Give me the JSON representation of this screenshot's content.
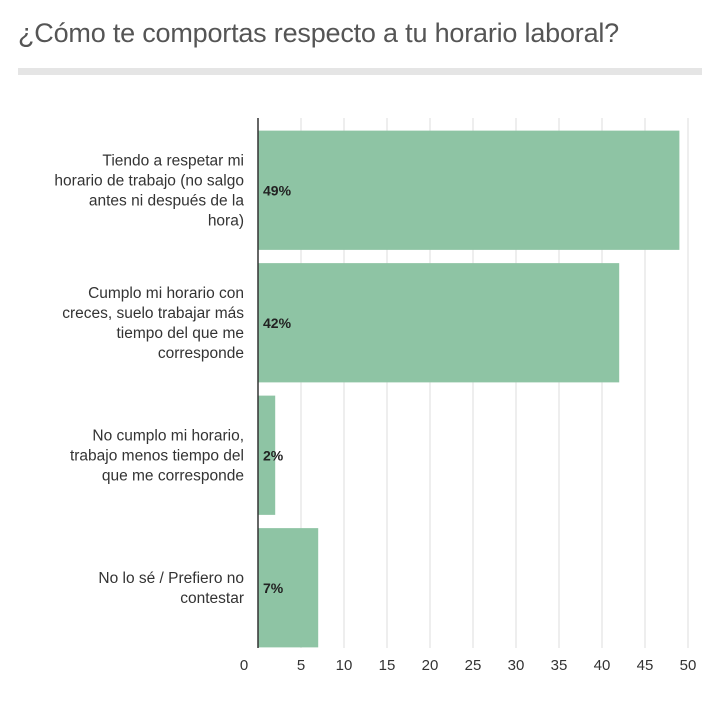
{
  "title": "¿Cómo te comportas respecto a tu horario laboral?",
  "chart_data": {
    "type": "bar",
    "orientation": "horizontal",
    "title": "¿Cómo te comportas respecto a tu horario laboral?",
    "xlabel": "",
    "ylabel": "",
    "xlim": [
      0,
      50
    ],
    "ticks": [
      0,
      5,
      10,
      15,
      20,
      25,
      30,
      35,
      40,
      45,
      50
    ],
    "grid": true,
    "bar_color": "#8ec4a4",
    "categories": [
      [
        "Tiendo a respetar mi",
        "horario de trabajo (no salgo",
        "antes ni después de la",
        "hora)"
      ],
      [
        "Cumplo mi horario con",
        "creces, suelo trabajar más",
        "tiempo del que me",
        "corresponde"
      ],
      [
        "No cumplo mi horario,",
        "trabajo menos tiempo del",
        "que me corresponde"
      ],
      [
        "No lo sé / Prefiero no",
        "contestar"
      ]
    ],
    "values": [
      49,
      42,
      2,
      7
    ],
    "data_labels": [
      "49%",
      "42%",
      "2%",
      "7%"
    ]
  }
}
